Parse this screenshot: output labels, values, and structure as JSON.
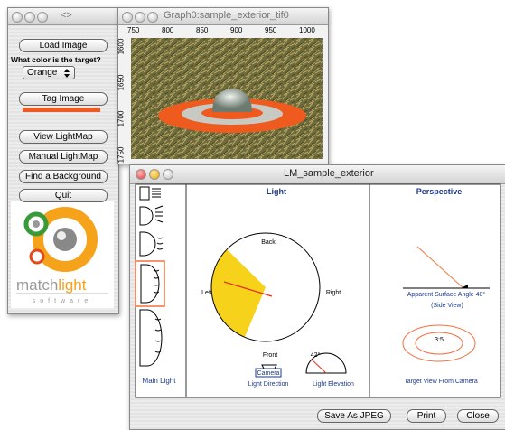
{
  "palette": {
    "title": "<>",
    "buttons": [
      "Load Image",
      "Tag Image",
      "View LightMap",
      "Manual LightMap",
      "Find a Background",
      "Quit"
    ],
    "question": "What color is the target?",
    "select": "Orange",
    "logo": {
      "brand_a": "match",
      "brand_b": "light",
      "tagline": "software"
    }
  },
  "graph": {
    "title": "Graph0:sample_exterior_tif0",
    "x_ticks": [
      750,
      800,
      850,
      900,
      950,
      1000
    ],
    "y_ticks": [
      1600,
      1650,
      1700,
      1750
    ]
  },
  "lightmap": {
    "title": "LM_sample_exterior",
    "sidebar_label": "Main Light",
    "light": {
      "title": "Light",
      "back": "Back",
      "left": "Left",
      "right": "Right",
      "front": "Front",
      "camera": "Camera",
      "direction_label": "Light Direction",
      "elevation": "42°",
      "elevation_label": "Light Elevation"
    },
    "perspective": {
      "title": "Perspective",
      "angle_label": "Apparent Surface Angle 40°",
      "side_view": "(Side View)",
      "ratio": "3:5",
      "target_label": "Target View From Camera"
    },
    "buttons": [
      "Save As JPEG",
      "Print",
      "Close"
    ]
  }
}
